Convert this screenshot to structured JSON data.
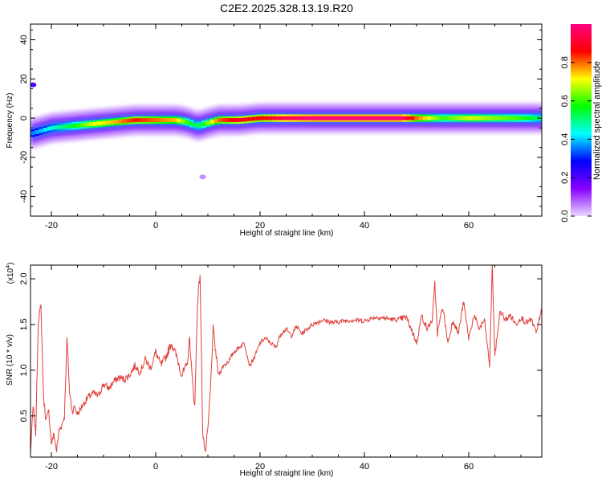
{
  "title": "C2E2.2025.328.13.19.R20",
  "chart_data": [
    {
      "type": "heatmap",
      "xlabel": "Height of straight line (km)",
      "ylabel": "Frequency (Hz)",
      "xlim": [
        -24,
        74
      ],
      "ylim": [
        -50,
        48
      ],
      "xticks": [
        -20,
        0,
        20,
        40,
        60
      ],
      "yticks": [
        -40,
        -20,
        0,
        20,
        40
      ],
      "colorbar": {
        "label": "Normalized spectral amplitude",
        "range": [
          0,
          1
        ],
        "ticks": [
          0.0,
          0.2,
          0.4,
          0.6,
          0.8
        ],
        "tick_labels": [
          "0.0",
          "0.2",
          "0.4",
          "0.6",
          "0.8"
        ],
        "colormap": [
          "#e8d8ff",
          "#8800ff",
          "#0000ff",
          "#00ffff",
          "#00ff00",
          "#ffff00",
          "#ff0000",
          "#ff0080"
        ]
      },
      "ridge": {
        "description_free": true,
        "x": [
          -24,
          -20,
          -16,
          -12,
          -8,
          -4,
          0,
          4,
          6,
          8,
          12,
          16,
          20,
          24,
          30,
          40,
          47,
          50,
          55,
          60,
          65,
          70,
          74
        ],
        "y": [
          -8,
          -5,
          -4,
          -3,
          -2,
          -1,
          -1,
          -1,
          -2,
          -4,
          -1,
          -1,
          0,
          0,
          0,
          0,
          0,
          0,
          0,
          0,
          0,
          0,
          0
        ],
        "amplitude": [
          0.35,
          0.45,
          0.55,
          0.7,
          0.75,
          0.85,
          0.8,
          0.75,
          0.6,
          0.5,
          0.8,
          0.9,
          0.85,
          0.95,
          1.0,
          1.0,
          1.0,
          0.8,
          0.6,
          0.7,
          0.65,
          0.6,
          0.5
        ]
      },
      "spots": [
        {
          "x": -23.5,
          "y": 17,
          "amplitude": 0.2
        },
        {
          "x": 9,
          "y": -30,
          "amplitude": 0.05
        }
      ]
    },
    {
      "type": "line",
      "xlabel": "Height of straight line (km)",
      "ylabel": "SNR (10 * v/v)",
      "y_multiplier": "(x10",
      "y_multiplier_exp": "4",
      "y_multiplier_close": ")",
      "xlim": [
        -24,
        74
      ],
      "ylim": [
        0.05,
        2.15
      ],
      "xticks": [
        -20,
        0,
        20,
        40,
        60
      ],
      "yticks": [
        0.5,
        1.0,
        1.5,
        2.0
      ],
      "ytick_labels": [
        "0.5",
        "1.0",
        "1.5",
        "2.0"
      ],
      "color": "#e0403a",
      "series": [
        {
          "x": [
            -24,
            -23.5,
            -23,
            -22.5,
            -22,
            -21.5,
            -21,
            -20.5,
            -20,
            -19.5,
            -19,
            -18.5,
            -18,
            -17.5,
            -17,
            -16.5,
            -16,
            -15.5,
            -15,
            -14,
            -13,
            -12,
            -11,
            -10,
            -9,
            -8,
            -7,
            -6,
            -5,
            -4,
            -3,
            -2,
            -1,
            0,
            1,
            2,
            3,
            4,
            5,
            6,
            6.5,
            7,
            7.5,
            8,
            8.5,
            9,
            9.5,
            10,
            10.5,
            11,
            11.5,
            12,
            13,
            14,
            15,
            16,
            17,
            18,
            19,
            20,
            21,
            22,
            23,
            24,
            25,
            26,
            27,
            28,
            30,
            32,
            34,
            36,
            38,
            40,
            42,
            44,
            46,
            48,
            49,
            50,
            51,
            52,
            53,
            53.5,
            54,
            55,
            56,
            57,
            58,
            59,
            60,
            61,
            62,
            63,
            64,
            64.5,
            65,
            66,
            67,
            68,
            69,
            70,
            71,
            72,
            73,
            74
          ],
          "y": [
            0.1,
            0.6,
            0.3,
            1.55,
            1.7,
            0.7,
            0.45,
            0.55,
            0.2,
            0.3,
            0.12,
            0.35,
            0.4,
            0.5,
            1.35,
            0.75,
            0.55,
            0.6,
            0.52,
            0.62,
            0.7,
            0.75,
            0.72,
            0.85,
            0.8,
            0.88,
            0.92,
            0.9,
            0.95,
            1.05,
            0.98,
            1.12,
            1.02,
            1.2,
            1.05,
            1.15,
            1.3,
            1.15,
            0.95,
            1.05,
            1.35,
            0.9,
            0.6,
            1.75,
            2.05,
            0.35,
            0.08,
            0.35,
            0.8,
            1.45,
            1.2,
            0.95,
            1.05,
            1.1,
            1.2,
            1.25,
            1.3,
            1.05,
            1.15,
            1.3,
            1.35,
            1.3,
            1.25,
            1.4,
            1.45,
            1.38,
            1.48,
            1.4,
            1.5,
            1.55,
            1.52,
            1.54,
            1.55,
            1.54,
            1.58,
            1.57,
            1.55,
            1.58,
            1.45,
            1.3,
            1.6,
            1.45,
            1.55,
            1.95,
            1.4,
            1.7,
            1.3,
            1.55,
            1.4,
            1.75,
            1.35,
            1.6,
            1.45,
            1.55,
            1.05,
            2.15,
            1.15,
            1.65,
            1.55,
            1.6,
            1.5,
            1.58,
            1.52,
            1.55,
            1.4,
            1.7
          ]
        }
      ]
    }
  ]
}
